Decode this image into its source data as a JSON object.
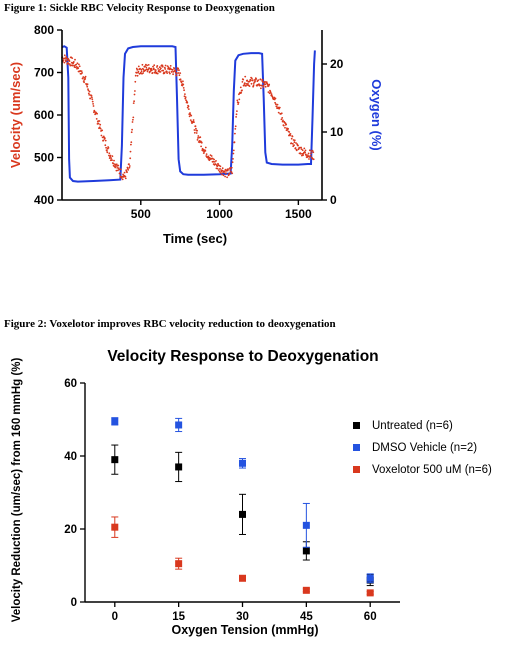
{
  "figure1": {
    "caption": "Figure 1: Sickle RBC Velocity Response to Deoxygenation",
    "chart_data": {
      "type": "scatter",
      "xlabel": "Time (sec)",
      "ylabel": "Velocity (um/sec)",
      "ylabel_right": "Oxygen (%)",
      "xlim": [
        0,
        1650
      ],
      "ylim": [
        400,
        800
      ],
      "ylim_right": [
        0,
        25
      ],
      "x_ticks": [
        500,
        1000,
        1500
      ],
      "y_ticks": [
        400,
        500,
        600,
        700,
        800
      ],
      "y_ticks_right": [
        0,
        10,
        20
      ],
      "velocity_color": "#d9381e",
      "oxygen_color": "#1f3bdb",
      "velocity_series": {
        "name": "Velocity",
        "x": [
          0,
          60,
          100,
          150,
          200,
          250,
          300,
          330,
          360,
          380,
          400,
          430,
          470,
          520,
          600,
          700,
          740,
          760,
          800,
          850,
          900,
          950,
          1000,
          1050,
          1080,
          1110,
          1150,
          1200,
          1250,
          1300,
          1350,
          1400,
          1450,
          1500,
          1560,
          1600
        ],
        "y": [
          735,
          725,
          715,
          680,
          620,
          560,
          510,
          490,
          470,
          460,
          455,
          480,
          700,
          710,
          708,
          705,
          700,
          680,
          620,
          560,
          520,
          495,
          475,
          462,
          470,
          620,
          680,
          678,
          675,
          670,
          640,
          590,
          545,
          520,
          508,
          505
        ]
      },
      "oxygen_series": {
        "name": "Oxygen",
        "x": [
          0,
          15,
          30,
          40,
          45,
          50,
          70,
          100,
          200,
          300,
          370,
          380,
          390,
          400,
          420,
          450,
          500,
          600,
          700,
          720,
          730,
          740,
          750,
          770,
          800,
          900,
          1000,
          1070,
          1080,
          1090,
          1100,
          1120,
          1150,
          1200,
          1250,
          1270,
          1280,
          1290,
          1300,
          1330,
          1400,
          1500,
          1560,
          1580,
          1590,
          1600,
          1605
        ],
        "y": [
          22.5,
          22.6,
          22.4,
          18,
          6,
          3.3,
          2.8,
          2.7,
          2.8,
          2.9,
          3.0,
          8,
          18,
          21.5,
          22.3,
          22.5,
          22.6,
          22.6,
          22.6,
          22.5,
          15,
          6,
          4.2,
          3.8,
          3.7,
          3.7,
          3.8,
          3.9,
          8,
          16,
          20.5,
          21.3,
          21.5,
          21.6,
          21.6,
          21.5,
          15,
          7,
          5.5,
          5.3,
          5.2,
          5.2,
          5.3,
          5.3,
          12,
          20,
          22
        ]
      }
    }
  },
  "figure2": {
    "caption": "Figure 2: Voxelotor improves RBC velocity reduction to deoxygenation",
    "chart_data": {
      "type": "scatter",
      "title": "Velocity Response to Deoxygenation",
      "xlabel": "Oxygen Tension (mmHg)",
      "ylabel": "Velocity Reduction (um/sec) from 160 mmHg (%)",
      "xlim": [
        -7,
        67
      ],
      "ylim": [
        0,
        60
      ],
      "categories": [
        "0",
        "15",
        "30",
        "45",
        "60"
      ],
      "x": [
        0,
        15,
        30,
        45,
        60
      ],
      "y_ticks": [
        "0",
        "20",
        "40",
        "60"
      ],
      "legend_position": "right",
      "series": [
        {
          "name": "Untreated (n=6)",
          "color": "#000000",
          "values": [
            39,
            37,
            24,
            14,
            6
          ],
          "errors": [
            4,
            4,
            5.5,
            2.5,
            1.5
          ]
        },
        {
          "name": "DMSO Vehicle (n=2)",
          "color": "#2453e0",
          "values": [
            49.5,
            48.5,
            38,
            21,
            6.5
          ],
          "errors": [
            1,
            1.8,
            1.3,
            6,
            1.2
          ]
        },
        {
          "name": "Voxelotor 500 uM (n=6)",
          "color": "#d9381e",
          "values": [
            20.5,
            10.5,
            6.5,
            3.2,
            2.5
          ],
          "errors": [
            2.8,
            1.5,
            0.5,
            0.4,
            0.4
          ]
        }
      ]
    }
  }
}
